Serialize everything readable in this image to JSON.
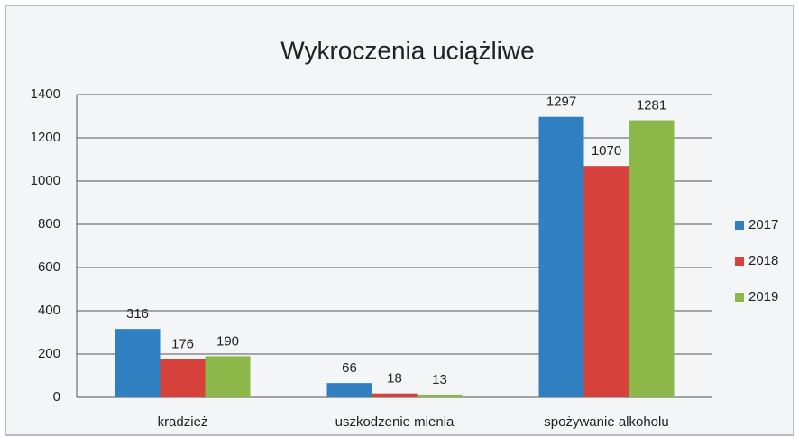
{
  "chart_data": {
    "type": "bar",
    "title": "Wykroczenia uciążliwe",
    "categories": [
      "kradzież",
      "uszkodzenie mienia",
      "spożywanie alkoholu"
    ],
    "series": [
      {
        "name": "2017",
        "color": "#2f7fc1",
        "values": [
          316,
          66,
          1297
        ]
      },
      {
        "name": "2018",
        "color": "#d6413b",
        "values": [
          176,
          18,
          1070
        ]
      },
      {
        "name": "2019",
        "color": "#8cb84a",
        "values": [
          190,
          13,
          1281
        ]
      }
    ],
    "ylim": [
      0,
      1400
    ],
    "yticks": [
      0,
      200,
      400,
      600,
      800,
      1000,
      1200,
      1400
    ],
    "grid": true,
    "legend": "right",
    "data_labels": true
  }
}
